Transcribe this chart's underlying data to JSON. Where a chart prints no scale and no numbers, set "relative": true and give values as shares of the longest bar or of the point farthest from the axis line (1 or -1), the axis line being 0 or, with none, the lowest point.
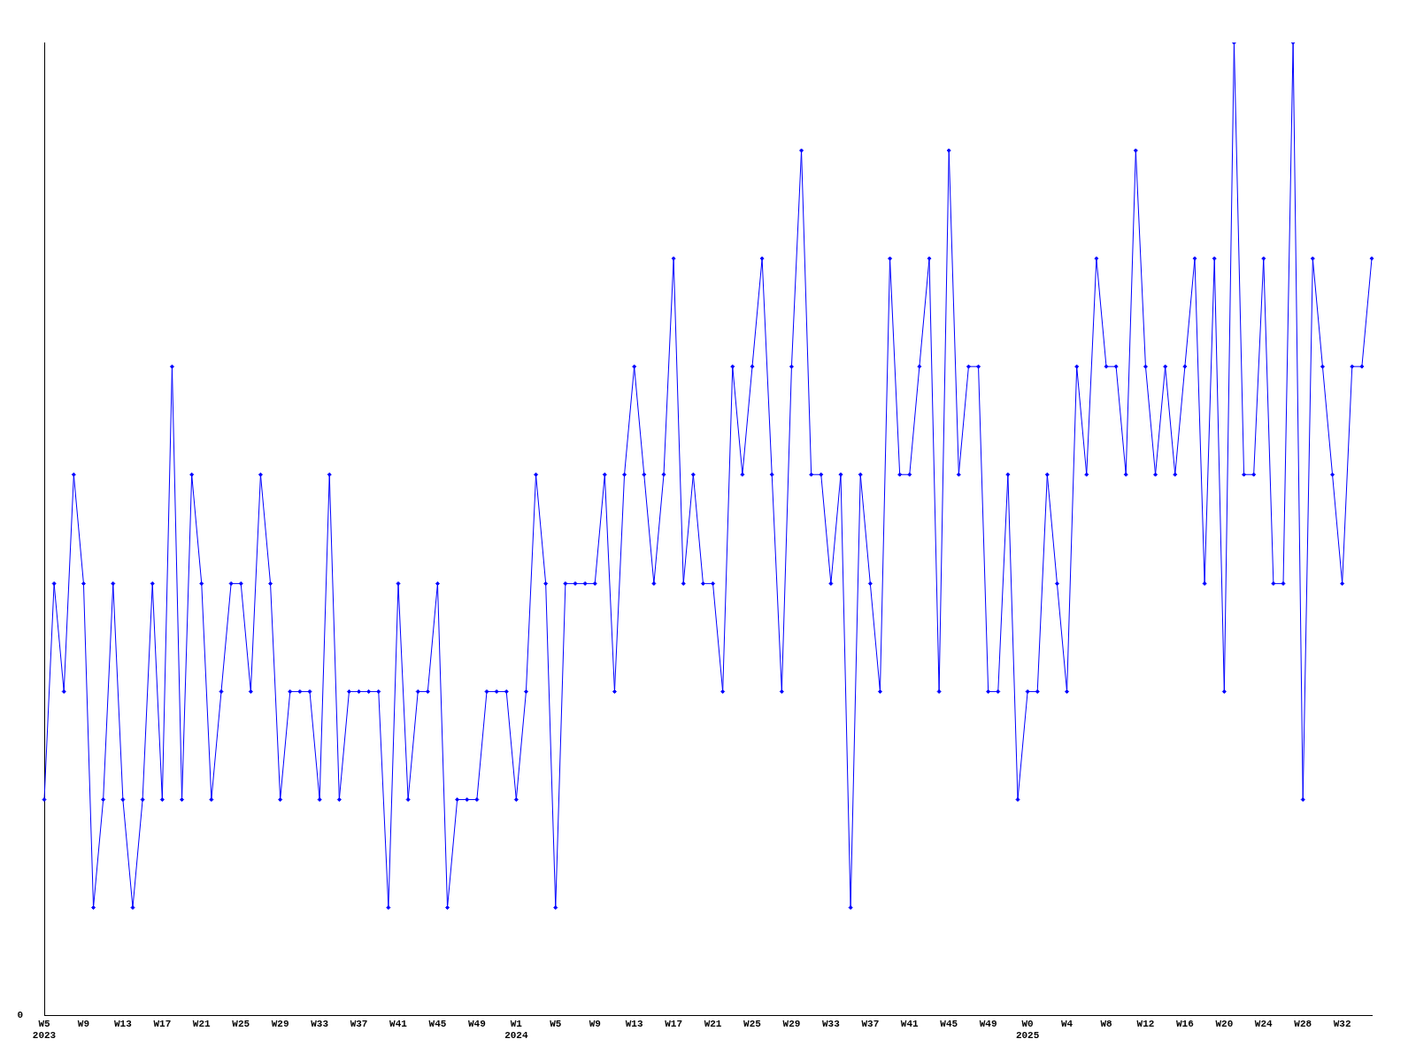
{
  "chart_data": {
    "type": "line",
    "relative": true,
    "color": "#0000ff",
    "marker": "diamond",
    "grid": false,
    "legend": false,
    "annotations": [
      "0"
    ],
    "categories": [
      "W5\n2023",
      null,
      null,
      null,
      "W9",
      null,
      null,
      null,
      "W13",
      null,
      null,
      null,
      "W17",
      null,
      null,
      null,
      "W21",
      null,
      null,
      null,
      "W25",
      null,
      null,
      null,
      "W29",
      null,
      null,
      null,
      "W33",
      null,
      null,
      null,
      "W37",
      null,
      null,
      null,
      "W41",
      null,
      null,
      null,
      "W45",
      null,
      null,
      null,
      "W49",
      null,
      null,
      null,
      "W1\n2024",
      null,
      null,
      null,
      "W5",
      null,
      null,
      null,
      "W9",
      null,
      null,
      null,
      "W13",
      null,
      null,
      null,
      "W17",
      null,
      null,
      null,
      "W21",
      null,
      null,
      null,
      "W25",
      null,
      null,
      null,
      "W29",
      null,
      null,
      null,
      "W33",
      null,
      null,
      null,
      "W37",
      null,
      null,
      null,
      "W41",
      null,
      null,
      null,
      "W45",
      null,
      null,
      null,
      "W49",
      null,
      null,
      null,
      "W0\n2025",
      null,
      null,
      null,
      "W4",
      null,
      null,
      null,
      "W8",
      null,
      null,
      null,
      "W12",
      null,
      null,
      null,
      "W16",
      null,
      null,
      null,
      "W20",
      null,
      null,
      null,
      "W24",
      null,
      null,
      null,
      "W28",
      null,
      null,
      null,
      "W32",
      null,
      null,
      null
    ],
    "values": [
      0.222,
      0.444,
      0.333,
      0.556,
      0.444,
      0.111,
      0.222,
      0.444,
      0.222,
      0.111,
      0.222,
      0.444,
      0.222,
      0.667,
      0.222,
      0.556,
      0.444,
      0.222,
      0.333,
      0.444,
      0.444,
      0.333,
      0.556,
      0.444,
      0.222,
      0.333,
      0.333,
      0.333,
      0.222,
      0.556,
      0.222,
      0.333,
      0.333,
      0.333,
      0.333,
      0.111,
      0.444,
      0.222,
      0.333,
      0.333,
      0.444,
      0.111,
      0.222,
      0.222,
      0.222,
      0.333,
      0.333,
      0.333,
      0.222,
      0.333,
      0.556,
      0.444,
      0.111,
      0.444,
      0.444,
      0.444,
      0.444,
      0.556,
      0.333,
      0.556,
      0.667,
      0.556,
      0.444,
      0.556,
      0.778,
      0.444,
      0.556,
      0.444,
      0.444,
      0.333,
      0.667,
      0.556,
      0.667,
      0.778,
      0.556,
      0.333,
      0.667,
      0.889,
      0.556,
      0.556,
      0.444,
      0.556,
      0.111,
      0.556,
      0.444,
      0.333,
      0.778,
      0.556,
      0.556,
      0.667,
      0.778,
      0.333,
      0.889,
      0.556,
      0.667,
      0.667,
      0.333,
      0.333,
      0.556,
      0.222,
      0.333,
      0.333,
      0.556,
      0.444,
      0.333,
      0.667,
      0.556,
      0.778,
      0.667,
      0.667,
      0.556,
      0.889,
      0.667,
      0.556,
      0.667,
      0.556,
      0.667,
      0.778,
      0.444,
      0.778,
      0.333,
      1,
      0.556,
      0.556,
      0.778,
      0.444,
      0.444,
      1,
      0.222,
      0.778,
      0.667,
      0.556,
      0.444,
      0.667,
      0.667,
      0.778
    ]
  }
}
